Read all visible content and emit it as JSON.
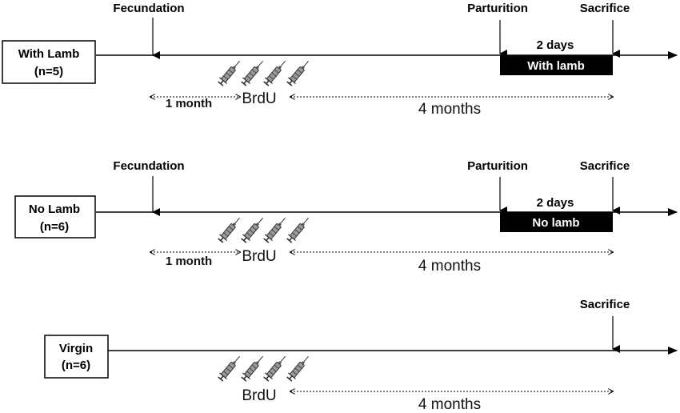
{
  "panels": [
    {
      "group": {
        "name": "With Lamb",
        "n": "(n=5)"
      },
      "events": {
        "fecundation": "Fecundation",
        "parturition": "Parturition",
        "sacrifice": "Sacrifice"
      },
      "post_partum": {
        "duration": "2 days",
        "condition": "With lamb"
      },
      "first_interval": "1 month",
      "injection_label": "BrdU",
      "chase_interval": "4 months"
    },
    {
      "group": {
        "name": "No Lamb",
        "n": "(n=6)"
      },
      "events": {
        "fecundation": "Fecundation",
        "parturition": "Parturition",
        "sacrifice": "Sacrifice"
      },
      "post_partum": {
        "duration": "2 days",
        "condition": "No lamb"
      },
      "first_interval": "1 month",
      "injection_label": "BrdU",
      "chase_interval": "4 months"
    },
    {
      "group": {
        "name": "Virgin",
        "n": "(n=6)"
      },
      "events": {
        "sacrifice": "Sacrifice"
      },
      "injection_label": "BrdU",
      "chase_interval": "4 months"
    }
  ],
  "icons": {
    "injection": "syringe-icon",
    "event_marker": "down-arrow-icon"
  }
}
